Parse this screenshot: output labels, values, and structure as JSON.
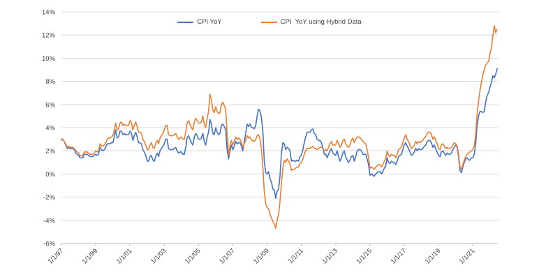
{
  "chart_data": {
    "type": "line",
    "title": "",
    "xlabel": "",
    "ylabel": "",
    "x_start": "1/1/1997",
    "x_end": "6/1/2022",
    "x_frequency": "monthly",
    "x_tick_labels": [
      "1/1/97",
      "1/1/99",
      "1/1/01",
      "1/1/03",
      "1/1/05",
      "1/1/07",
      "1/1/09",
      "1/1/11",
      "1/1/13",
      "1/1/15",
      "1/1/17",
      "1/1/19",
      "1/1/21"
    ],
    "x_tick_interval_months": 24,
    "y_tick_labels": [
      "14%",
      "12%",
      "10%",
      "8%",
      "6%",
      "4%",
      "2%",
      "0%",
      "-2%",
      "-4%",
      "-6%"
    ],
    "ylim": [
      -6,
      14
    ],
    "y_tick_step": 2,
    "grid": "horizontal",
    "legend_position": "top-center",
    "series": [
      {
        "name": "CPI YoY",
        "color": "#4472C4",
        "values": [
          3.0,
          3.0,
          2.8,
          2.5,
          2.2,
          2.3,
          2.2,
          2.2,
          2.2,
          2.1,
          1.8,
          1.7,
          1.6,
          1.4,
          1.4,
          1.4,
          1.7,
          1.7,
          1.7,
          1.6,
          1.5,
          1.5,
          1.5,
          1.6,
          1.7,
          1.6,
          1.7,
          2.3,
          2.1,
          2.0,
          2.1,
          2.3,
          2.6,
          2.6,
          2.6,
          2.7,
          2.7,
          3.2,
          3.8,
          3.1,
          3.2,
          3.7,
          3.7,
          3.4,
          3.5,
          3.4,
          3.4,
          3.4,
          3.7,
          3.5,
          2.9,
          3.3,
          3.6,
          3.2,
          2.7,
          2.7,
          2.6,
          2.1,
          1.9,
          1.6,
          1.1,
          1.1,
          1.5,
          1.6,
          1.2,
          1.1,
          1.5,
          1.8,
          1.5,
          2.0,
          2.2,
          2.4,
          2.6,
          3.0,
          3.0,
          2.2,
          2.1,
          2.1,
          2.1,
          2.2,
          2.3,
          2.0,
          1.8,
          1.9,
          1.9,
          1.7,
          1.7,
          2.3,
          3.1,
          3.3,
          3.0,
          2.7,
          2.5,
          3.2,
          3.5,
          3.3,
          3.0,
          3.0,
          3.1,
          3.5,
          2.8,
          2.5,
          3.2,
          3.6,
          4.7,
          4.3,
          3.5,
          3.4,
          4.0,
          3.6,
          3.4,
          3.5,
          4.2,
          4.3,
          4.1,
          3.8,
          2.1,
          1.3,
          2.0,
          2.5,
          2.1,
          2.4,
          2.8,
          2.6,
          2.7,
          2.7,
          2.4,
          2.0,
          2.8,
          3.5,
          4.3,
          4.1,
          4.3,
          4.0,
          4.0,
          3.9,
          4.2,
          5.0,
          5.6,
          5.4,
          4.9,
          3.7,
          1.1,
          0.1,
          0.0,
          0.2,
          -0.4,
          -0.7,
          -1.3,
          -1.4,
          -2.1,
          -1.5,
          -1.3,
          -0.2,
          1.8,
          2.7,
          2.6,
          2.1,
          2.3,
          2.2,
          2.0,
          1.1,
          1.2,
          1.1,
          1.1,
          1.2,
          1.1,
          1.5,
          1.6,
          2.1,
          2.7,
          3.2,
          3.6,
          3.6,
          3.6,
          3.8,
          3.9,
          3.5,
          3.4,
          3.0,
          2.9,
          2.9,
          2.7,
          2.3,
          1.7,
          1.7,
          1.4,
          1.7,
          2.0,
          2.2,
          1.8,
          1.7,
          1.6,
          2.0,
          1.5,
          1.1,
          1.4,
          1.8,
          2.0,
          1.5,
          1.2,
          1.0,
          1.2,
          1.5,
          1.6,
          1.1,
          1.5,
          2.0,
          2.1,
          2.1,
          2.0,
          1.7,
          1.7,
          1.7,
          1.3,
          0.8,
          -0.1,
          0.0,
          -0.1,
          -0.2,
          0.0,
          0.1,
          0.2,
          0.2,
          0.0,
          0.2,
          0.5,
          0.7,
          1.4,
          1.0,
          0.9,
          1.1,
          1.0,
          1.0,
          0.8,
          1.1,
          1.5,
          1.6,
          1.7,
          2.1,
          2.5,
          2.7,
          2.4,
          2.2,
          1.9,
          1.6,
          1.7,
          1.9,
          2.2,
          2.0,
          2.2,
          2.1,
          2.1,
          2.2,
          2.4,
          2.5,
          2.8,
          2.9,
          2.9,
          2.7,
          2.3,
          2.5,
          2.2,
          1.9,
          1.6,
          1.5,
          1.9,
          2.0,
          1.8,
          1.6,
          1.8,
          1.7,
          1.7,
          1.8,
          2.1,
          2.3,
          2.5,
          2.3,
          1.5,
          0.3,
          0.1,
          0.6,
          1.0,
          1.3,
          1.4,
          1.2,
          1.2,
          1.4,
          1.4,
          1.7,
          2.6,
          4.2,
          5.0,
          5.4,
          5.4,
          5.3,
          5.4,
          6.2,
          6.8,
          7.0,
          7.5,
          7.9,
          8.5,
          8.3,
          8.6,
          9.1
        ]
      },
      {
        "name": "CPI  YoY using Hybrid Data",
        "color": "#ED7D31",
        "values": [
          2.9,
          3.0,
          2.8,
          2.6,
          2.3,
          2.4,
          2.3,
          2.3,
          2.3,
          2.2,
          2.0,
          1.9,
          1.8,
          1.6,
          1.6,
          1.6,
          1.9,
          1.9,
          1.9,
          1.8,
          1.7,
          1.7,
          1.7,
          1.8,
          2.0,
          1.9,
          2.0,
          2.6,
          2.4,
          2.4,
          2.5,
          2.7,
          3.0,
          3.1,
          3.1,
          3.2,
          3.3,
          3.8,
          4.4,
          3.8,
          3.9,
          4.4,
          4.5,
          4.2,
          4.3,
          4.2,
          4.2,
          4.2,
          4.6,
          4.4,
          3.8,
          4.2,
          4.5,
          4.1,
          3.6,
          3.6,
          3.5,
          3.0,
          2.8,
          2.5,
          2.1,
          2.1,
          2.5,
          2.7,
          2.3,
          2.2,
          2.6,
          2.9,
          2.6,
          3.1,
          3.3,
          3.5,
          3.8,
          4.2,
          4.2,
          3.4,
          3.3,
          3.3,
          3.3,
          3.4,
          3.5,
          3.2,
          3.0,
          3.1,
          3.2,
          3.0,
          3.0,
          3.6,
          4.4,
          4.6,
          4.3,
          4.0,
          3.8,
          4.5,
          4.8,
          4.6,
          4.4,
          4.4,
          4.5,
          5.0,
          4.3,
          4.0,
          4.8,
          5.4,
          6.9,
          6.4,
          5.5,
          5.3,
          5.8,
          5.4,
          5.2,
          5.3,
          6.0,
          6.2,
          5.9,
          5.6,
          3.4,
          1.6,
          2.4,
          2.9,
          2.5,
          2.8,
          3.2,
          3.0,
          3.1,
          3.0,
          2.7,
          2.3,
          2.6,
          2.9,
          3.3,
          3.1,
          3.2,
          2.9,
          2.9,
          2.8,
          3.0,
          3.3,
          3.4,
          3.0,
          2.2,
          0.5,
          -1.5,
          -2.6,
          -2.9,
          -3.0,
          -3.5,
          -3.8,
          -4.1,
          -4.3,
          -4.7,
          -4.0,
          -3.5,
          -2.4,
          -0.8,
          0.5,
          1.2,
          1.0,
          1.3,
          1.1,
          0.9,
          0.3,
          0.4,
          0.4,
          0.5,
          0.6,
          0.6,
          0.9,
          1.0,
          1.3,
          1.7,
          2.0,
          2.2,
          2.2,
          2.2,
          2.3,
          2.4,
          2.2,
          2.2,
          2.1,
          2.2,
          2.3,
          2.3,
          2.2,
          2.0,
          2.1,
          2.0,
          2.3,
          2.6,
          2.8,
          2.5,
          2.5,
          2.5,
          2.9,
          2.6,
          2.3,
          2.5,
          2.9,
          3.0,
          2.6,
          2.4,
          2.3,
          2.5,
          2.9,
          3.1,
          2.7,
          3.0,
          3.2,
          3.2,
          3.1,
          3.0,
          2.8,
          2.7,
          2.6,
          2.1,
          1.4,
          0.5,
          0.6,
          0.5,
          0.4,
          0.6,
          0.7,
          0.8,
          0.8,
          0.6,
          0.8,
          1.1,
          1.3,
          2.0,
          1.6,
          1.5,
          1.7,
          1.6,
          1.6,
          1.4,
          1.7,
          2.1,
          2.2,
          2.3,
          2.7,
          3.1,
          3.4,
          3.0,
          2.8,
          2.5,
          2.2,
          2.3,
          2.5,
          2.8,
          2.6,
          2.8,
          2.7,
          2.8,
          2.9,
          3.1,
          3.2,
          3.5,
          3.6,
          3.6,
          3.4,
          3.0,
          3.2,
          2.9,
          2.6,
          2.2,
          2.1,
          2.5,
          2.6,
          2.4,
          2.2,
          2.3,
          2.2,
          2.2,
          2.3,
          2.5,
          2.7,
          2.6,
          2.4,
          1.7,
          0.6,
          0.4,
          0.8,
          1.2,
          1.5,
          1.7,
          1.8,
          1.9,
          2.0,
          2.1,
          2.4,
          3.4,
          5.2,
          6.3,
          7.2,
          7.9,
          8.6,
          9.0,
          9.4,
          9.6,
          9.7,
          10.4,
          10.9,
          11.9,
          12.8,
          12.2,
          12.5
        ]
      }
    ]
  },
  "colors": {
    "series_blue": "#4472C4",
    "series_orange": "#ED7D31",
    "gridline": "#D9D9D9",
    "axis": "#BFBFBF",
    "label": "#404040",
    "background": "#FFFFFF"
  }
}
